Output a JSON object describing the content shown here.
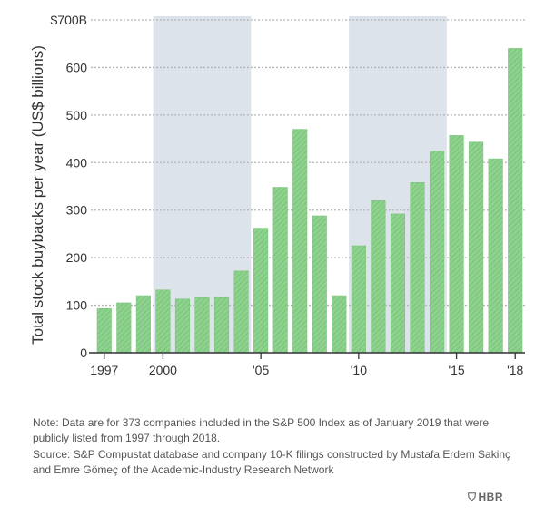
{
  "chart_data": {
    "type": "bar",
    "years": [
      1997,
      1998,
      1999,
      2000,
      2001,
      2002,
      2003,
      2004,
      2005,
      2006,
      2007,
      2008,
      2009,
      2010,
      2011,
      2012,
      2013,
      2014,
      2015,
      2016,
      2017,
      2018
    ],
    "values": [
      93,
      105,
      120,
      132,
      113,
      116,
      116,
      172,
      262,
      348,
      470,
      288,
      120,
      225,
      320,
      292,
      358,
      424,
      457,
      443,
      408,
      640
    ],
    "ylabel": "Total stock buybacks per year (US$ billions)",
    "ylim": [
      0,
      700
    ],
    "yticks": [
      0,
      100,
      200,
      300,
      400,
      500,
      600,
      700
    ],
    "ytick_labels": [
      "0",
      "100",
      "200",
      "300",
      "400",
      "500",
      "600",
      "$700B"
    ],
    "xticks": [
      {
        "year": 1997,
        "label": "1997"
      },
      {
        "year": 2000,
        "label": "2000"
      },
      {
        "year": 2005,
        "label": "'05"
      },
      {
        "year": 2010,
        "label": "'10"
      },
      {
        "year": 2015,
        "label": "'15"
      },
      {
        "year": 2018,
        "label": "'18"
      }
    ],
    "recession_shading": [
      {
        "start_year": 2000,
        "end_year": 2004
      },
      {
        "start_year": 2010,
        "end_year": 2014
      }
    ],
    "colors": {
      "bar": "#8fd18f",
      "bar_hatch": "#5fb55f",
      "shade": "#dde3ea",
      "grid": "#b5b5b5",
      "axis": "#333333"
    }
  },
  "notes": {
    "note": "Note: Data are for 373 companies included in the S&P 500 Index as of January 2019 that were publicly listed from 1997 through 2018.",
    "source": "Source: S&P Compustat database and company 10-K filings constructed by Mustafa Erdem Sakinç and Emre Gömeç of the Academic-Industry Research Network"
  },
  "brand": {
    "label": "HBR",
    "icon": "shield-icon"
  }
}
